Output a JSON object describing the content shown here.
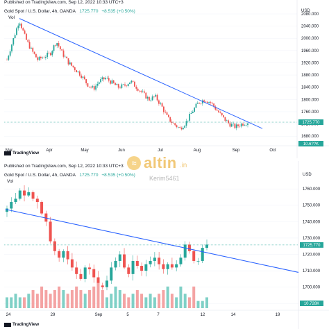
{
  "top": {
    "published": "Published on TradingView.com, Sep 12, 2022 10:33 UTC+3",
    "symbol": "Gold Spot / U.S. Dollar, 4h, OANDA",
    "price": "1725.770",
    "change": "+8.535 (+0.50%)",
    "vol_label": "Vol",
    "currency": "USD",
    "price_tag": "1725.770",
    "lower_tag": "10.6??K",
    "footer_logo": "TradingView",
    "y_ticks": [
      "2080.000",
      "2040.000",
      "2000.000",
      "1960.000",
      "1920.000",
      "1880.000",
      "1840.000",
      "1800.000",
      "1760.000",
      "1720.000",
      "1680.000"
    ],
    "x_ticks": [
      "Mar",
      "Apr",
      "May",
      "Jun",
      "Jul",
      "Aug",
      "Sep",
      "Oct"
    ]
  },
  "bottom": {
    "published": "Published on TradingView.com, Sep 12, 2022 10:33 UTC+3",
    "symbol": "Gold Spot / U.S. Dollar, 4h, OANDA",
    "price": "1725.770",
    "change": "+8.535 (+0.50%)",
    "vol_label": "Vol",
    "currency": "USD",
    "price_tag": "1725.770",
    "vol_tag": "10.728K",
    "footer_logo": "TradingView",
    "y_ticks": [
      "1760.000",
      "1750.000",
      "1740.000",
      "1730.000",
      "1720.000",
      "1710.000",
      "1700.000",
      "1690.000"
    ],
    "x_ticks": [
      "24",
      "29",
      "Sep",
      "5",
      "7",
      "12",
      "14",
      "19"
    ]
  },
  "watermark": {
    "brand": "altin",
    "tld": ".in",
    "user": "Kerim5461"
  },
  "colors": {
    "up": "#26a69a",
    "down": "#ef5350",
    "trendline": "#2962ff",
    "vol_up": "#7fd0c6",
    "vol_down": "#f4a3a3"
  },
  "chart_data": [
    {
      "type": "candlestick",
      "title": "Gold Spot / U.S. Dollar, 4h, OANDA",
      "ylabel": "USD",
      "ylim": [
        1660,
        2080
      ],
      "x_ticks": [
        "Mar",
        "Apr",
        "May",
        "Jun",
        "Jul",
        "Aug",
        "Sep",
        "Oct"
      ],
      "close_path": [
        1930,
        1995,
        2060,
        2000,
        1960,
        1930,
        1940,
        1950,
        1990,
        1950,
        1920,
        1900,
        1880,
        1850,
        1835,
        1860,
        1870,
        1855,
        1840,
        1845,
        1860,
        1840,
        1820,
        1800,
        1810,
        1780,
        1740,
        1720,
        1705,
        1725,
        1760,
        1790,
        1800,
        1790,
        1765,
        1740,
        1720,
        1710,
        1720,
        1726
      ],
      "trendline": {
        "from": [
          "Mar",
          2065
        ],
        "to": [
          "Oct",
          1705
        ]
      },
      "last_price": 1725.77
    },
    {
      "type": "candlestick",
      "title": "Gold Spot / U.S. Dollar, 4h, OANDA",
      "ylabel": "USD",
      "ylim": [
        1688,
        1766
      ],
      "x_ticks": [
        "24",
        "29",
        "Sep",
        "5",
        "7",
        "12",
        "14",
        "19"
      ],
      "close_path": [
        1748,
        1752,
        1754,
        1759,
        1756,
        1758,
        1754,
        1752,
        1745,
        1740,
        1728,
        1722,
        1718,
        1722,
        1717,
        1712,
        1708,
        1705,
        1712,
        1711,
        1706,
        1701,
        1700,
        1704,
        1712,
        1716,
        1720,
        1712,
        1708,
        1716,
        1713,
        1710,
        1714,
        1716,
        1718,
        1714,
        1711,
        1714,
        1712,
        1714,
        1718,
        1726,
        1722,
        1716,
        1716,
        1724,
        1726
      ],
      "volumes": [
        3,
        3,
        4,
        3,
        3,
        4,
        5,
        4,
        6,
        5,
        4,
        5,
        6,
        5,
        4,
        5,
        6,
        5,
        4,
        5,
        6,
        7,
        5,
        3,
        4,
        6,
        5,
        4,
        3,
        4,
        5,
        4,
        3,
        4,
        3,
        4,
        5,
        6,
        4,
        3,
        6,
        4,
        3,
        6,
        2,
        2,
        3
      ],
      "trendline": {
        "from": [
          "24",
          1747
        ],
        "to": [
          "19",
          1709
        ]
      },
      "last_price": 1725.77,
      "last_volume": "10.728K"
    }
  ]
}
